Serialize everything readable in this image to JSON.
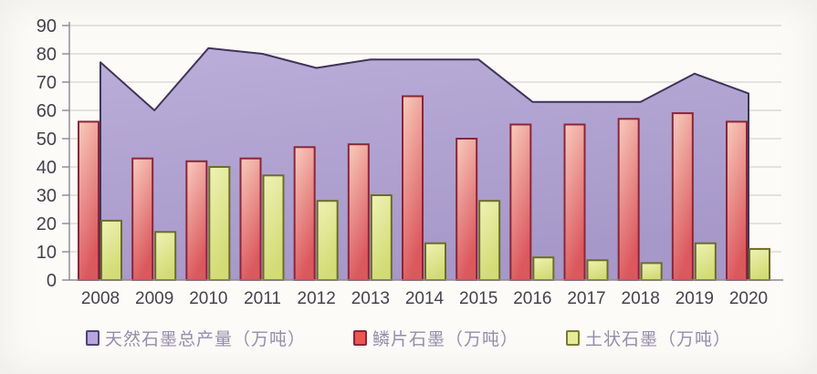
{
  "chart_data": {
    "type": "combo-area-bar",
    "title": "",
    "xlabel": "",
    "ylabel": "",
    "ylim": [
      0,
      90
    ],
    "ytick_step": 10,
    "yticks": [
      "0",
      "10",
      "20",
      "30",
      "40",
      "50",
      "60",
      "70",
      "80",
      "90"
    ],
    "grid": true,
    "legend_position": "bottom",
    "categories": [
      "2008",
      "2009",
      "2010",
      "2011",
      "2012",
      "2013",
      "2014",
      "2015",
      "2016",
      "2017",
      "2018",
      "2019",
      "2020"
    ],
    "series": [
      {
        "name": "天然石墨总产量（万吨）",
        "type": "area",
        "values": [
          77,
          60,
          82,
          80,
          75,
          78,
          78,
          78,
          63,
          63,
          63,
          73,
          66
        ],
        "fill_light": "#bcaeda",
        "fill_dark": "#a698c8",
        "border": "#3f3557",
        "swatch_fill": "#b7a6e0",
        "swatch_border": "#4e4470"
      },
      {
        "name": "鳞片石墨（万吨）",
        "type": "bar",
        "values": [
          56,
          43,
          42,
          43,
          47,
          48,
          65,
          50,
          55,
          55,
          57,
          59,
          56
        ],
        "fill_light": "#f8cbbc",
        "fill_dark": "#db585d",
        "border": "#8c2539",
        "swatch_fill": "#ec564f",
        "swatch_border": "#8c2539"
      },
      {
        "name": "土状石墨（万吨）",
        "type": "bar",
        "values": [
          21,
          17,
          40,
          37,
          28,
          30,
          13,
          28,
          8,
          7,
          6,
          13,
          11
        ],
        "fill_light": "#eef2b4",
        "fill_dark": "#d2db74",
        "border": "#6d6c28",
        "swatch_fill": "#e6eb97",
        "swatch_border": "#7b7a33"
      }
    ],
    "axis_text_color": "#45424e",
    "grid_color": "#cbc8c3",
    "axis_line_color": "#8b8791"
  }
}
